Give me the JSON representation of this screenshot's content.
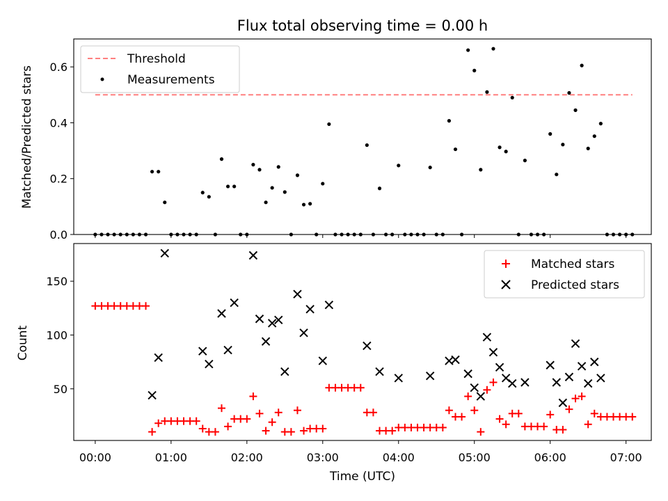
{
  "chart_data": [
    {
      "type": "scatter",
      "title": "Flux total observing time = 0.00 h",
      "xlabel": "",
      "ylabel": "Matched/Predicted stars",
      "xlim": [
        "23:43",
        "07:20"
      ],
      "ylim": [
        0,
        0.7
      ],
      "yticks": [
        "0.0",
        "0.2",
        "0.4",
        "0.6"
      ],
      "legend": "top-left",
      "series": [
        {
          "name": "Threshold",
          "kind": "dashed-line",
          "color": "#ff7f7f",
          "points": [
            [
              "00:00",
              0.5
            ],
            [
              "07:05",
              0.5
            ]
          ]
        },
        {
          "name": "Measurements",
          "kind": "dots",
          "color": "#000000",
          "points": [
            [
              "00:00",
              0
            ],
            [
              "00:05",
              0
            ],
            [
              "00:10",
              0
            ],
            [
              "00:15",
              0
            ],
            [
              "00:20",
              0
            ],
            [
              "00:25",
              0
            ],
            [
              "00:30",
              0
            ],
            [
              "00:35",
              0
            ],
            [
              "00:40",
              0
            ],
            [
              "00:45",
              0.225
            ],
            [
              "00:50",
              0.225
            ],
            [
              "00:55",
              0.115
            ],
            [
              "01:00",
              0
            ],
            [
              "01:05",
              0
            ],
            [
              "01:10",
              0
            ],
            [
              "01:15",
              0
            ],
            [
              "01:20",
              0
            ],
            [
              "01:25",
              0.15
            ],
            [
              "01:30",
              0.135
            ],
            [
              "01:35",
              0
            ],
            [
              "01:40",
              0.27
            ],
            [
              "01:45",
              0.172
            ],
            [
              "01:50",
              0.172
            ],
            [
              "01:55",
              0
            ],
            [
              "02:00",
              0
            ],
            [
              "02:05",
              0.25
            ],
            [
              "02:10",
              0.232
            ],
            [
              "02:15",
              0.115
            ],
            [
              "02:20",
              0.167
            ],
            [
              "02:25",
              0.242
            ],
            [
              "02:30",
              0.152
            ],
            [
              "02:35",
              0
            ],
            [
              "02:40",
              0.212
            ],
            [
              "02:45",
              0.107
            ],
            [
              "02:50",
              0.11
            ],
            [
              "02:55",
              0
            ],
            [
              "03:00",
              0.182
            ],
            [
              "03:05",
              0.395
            ],
            [
              "03:10",
              0
            ],
            [
              "03:15",
              0
            ],
            [
              "03:20",
              0
            ],
            [
              "03:25",
              0
            ],
            [
              "03:30",
              0
            ],
            [
              "03:35",
              0.32
            ],
            [
              "03:40",
              0
            ],
            [
              "03:45",
              0.165
            ],
            [
              "03:50",
              0
            ],
            [
              "03:55",
              0
            ],
            [
              "04:00",
              0.247
            ],
            [
              "04:05",
              0
            ],
            [
              "04:10",
              0
            ],
            [
              "04:15",
              0
            ],
            [
              "04:20",
              0
            ],
            [
              "04:25",
              0.24
            ],
            [
              "04:30",
              0
            ],
            [
              "04:35",
              0
            ],
            [
              "04:40",
              0.407
            ],
            [
              "04:45",
              0.305
            ],
            [
              "04:50",
              0
            ],
            [
              "04:55",
              0.66
            ],
            [
              "05:00",
              0.587
            ],
            [
              "05:05",
              0.232
            ],
            [
              "05:10",
              0.51
            ],
            [
              "05:15",
              0.665
            ],
            [
              "05:20",
              0.312
            ],
            [
              "05:25",
              0.297
            ],
            [
              "05:30",
              0.49
            ],
            [
              "05:35",
              0
            ],
            [
              "05:40",
              0.265
            ],
            [
              "05:45",
              0
            ],
            [
              "05:50",
              0
            ],
            [
              "05:55",
              0
            ],
            [
              "06:00",
              0.36
            ],
            [
              "06:05",
              0.215
            ],
            [
              "06:10",
              0.322
            ],
            [
              "06:15",
              0.507
            ],
            [
              "06:20",
              0.445
            ],
            [
              "06:25",
              0.605
            ],
            [
              "06:30",
              0.308
            ],
            [
              "06:35",
              0.352
            ],
            [
              "06:40",
              0.397
            ],
            [
              "06:45",
              0
            ],
            [
              "06:50",
              0
            ],
            [
              "06:55",
              0
            ],
            [
              "07:00",
              0
            ],
            [
              "07:05",
              0
            ]
          ]
        }
      ]
    },
    {
      "type": "scatter",
      "title": "",
      "xlabel": "Time (UTC)",
      "ylabel": "Count",
      "xlim": [
        "23:43",
        "07:20"
      ],
      "ylim": [
        2,
        185
      ],
      "xticks": [
        "00:00",
        "01:00",
        "02:00",
        "03:00",
        "04:00",
        "05:00",
        "06:00",
        "07:00"
      ],
      "yticks": [
        "50",
        "100",
        "150"
      ],
      "legend": "top-right",
      "series": [
        {
          "name": "Matched stars",
          "kind": "plus",
          "color": "#ff0000",
          "points": [
            [
              "00:00",
              127
            ],
            [
              "00:05",
              127
            ],
            [
              "00:10",
              127
            ],
            [
              "00:15",
              127
            ],
            [
              "00:20",
              127
            ],
            [
              "00:25",
              127
            ],
            [
              "00:30",
              127
            ],
            [
              "00:35",
              127
            ],
            [
              "00:40",
              127
            ],
            [
              "00:45",
              10
            ],
            [
              "00:50",
              18
            ],
            [
              "00:55",
              20
            ],
            [
              "01:00",
              20
            ],
            [
              "01:05",
              20
            ],
            [
              "01:10",
              20
            ],
            [
              "01:15",
              20
            ],
            [
              "01:20",
              20
            ],
            [
              "01:25",
              13
            ],
            [
              "01:30",
              10
            ],
            [
              "01:35",
              10
            ],
            [
              "01:40",
              32
            ],
            [
              "01:45",
              15
            ],
            [
              "01:50",
              22
            ],
            [
              "01:55",
              22
            ],
            [
              "02:00",
              22
            ],
            [
              "02:05",
              43
            ],
            [
              "02:10",
              27
            ],
            [
              "02:15",
              11
            ],
            [
              "02:20",
              19
            ],
            [
              "02:25",
              28
            ],
            [
              "02:30",
              10
            ],
            [
              "02:35",
              10
            ],
            [
              "02:40",
              30
            ],
            [
              "02:45",
              11
            ],
            [
              "02:50",
              13
            ],
            [
              "02:55",
              13
            ],
            [
              "03:00",
              13
            ],
            [
              "03:05",
              51
            ],
            [
              "03:10",
              51
            ],
            [
              "03:15",
              51
            ],
            [
              "03:20",
              51
            ],
            [
              "03:25",
              51
            ],
            [
              "03:30",
              51
            ],
            [
              "03:35",
              28
            ],
            [
              "03:40",
              28
            ],
            [
              "03:45",
              11
            ],
            [
              "03:50",
              11
            ],
            [
              "03:55",
              11
            ],
            [
              "04:00",
              14
            ],
            [
              "04:05",
              14
            ],
            [
              "04:10",
              14
            ],
            [
              "04:15",
              14
            ],
            [
              "04:20",
              14
            ],
            [
              "04:25",
              14
            ],
            [
              "04:30",
              14
            ],
            [
              "04:35",
              14
            ],
            [
              "04:40",
              30
            ],
            [
              "04:45",
              24
            ],
            [
              "04:50",
              24
            ],
            [
              "04:55",
              43
            ],
            [
              "05:00",
              30
            ],
            [
              "05:05",
              10
            ],
            [
              "05:10",
              49
            ],
            [
              "05:15",
              56
            ],
            [
              "05:20",
              22
            ],
            [
              "05:25",
              17
            ],
            [
              "05:30",
              27
            ],
            [
              "05:35",
              27
            ],
            [
              "05:40",
              15
            ],
            [
              "05:45",
              15
            ],
            [
              "05:50",
              15
            ],
            [
              "05:55",
              15
            ],
            [
              "06:00",
              26
            ],
            [
              "06:05",
              12
            ],
            [
              "06:10",
              12
            ],
            [
              "06:15",
              31
            ],
            [
              "06:20",
              41
            ],
            [
              "06:25",
              43
            ],
            [
              "06:30",
              17
            ],
            [
              "06:35",
              27
            ],
            [
              "06:40",
              24
            ],
            [
              "06:45",
              24
            ],
            [
              "06:50",
              24
            ],
            [
              "06:55",
              24
            ],
            [
              "07:00",
              24
            ],
            [
              "07:05",
              24
            ]
          ]
        },
        {
          "name": "Predicted stars",
          "kind": "x",
          "color": "#000000",
          "points": [
            [
              "00:45",
              44
            ],
            [
              "00:50",
              79
            ],
            [
              "00:55",
              176
            ],
            [
              "01:25",
              85
            ],
            [
              "01:30",
              73
            ],
            [
              "01:40",
              120
            ],
            [
              "01:45",
              86
            ],
            [
              "01:50",
              130
            ],
            [
              "02:05",
              174
            ],
            [
              "02:10",
              115
            ],
            [
              "02:15",
              94
            ],
            [
              "02:20",
              111
            ],
            [
              "02:25",
              114
            ],
            [
              "02:30",
              66
            ],
            [
              "02:40",
              138
            ],
            [
              "02:45",
              102
            ],
            [
              "02:50",
              124
            ],
            [
              "03:00",
              76
            ],
            [
              "03:05",
              128
            ],
            [
              "03:35",
              90
            ],
            [
              "03:45",
              66
            ],
            [
              "04:00",
              60
            ],
            [
              "04:25",
              62
            ],
            [
              "04:40",
              76
            ],
            [
              "04:45",
              77
            ],
            [
              "04:55",
              64
            ],
            [
              "05:00",
              51
            ],
            [
              "05:05",
              43
            ],
            [
              "05:10",
              98
            ],
            [
              "05:15",
              84
            ],
            [
              "05:20",
              70
            ],
            [
              "05:25",
              60
            ],
            [
              "05:30",
              55
            ],
            [
              "05:40",
              56
            ],
            [
              "06:00",
              72
            ],
            [
              "06:05",
              56
            ],
            [
              "06:10",
              37
            ],
            [
              "06:15",
              61
            ],
            [
              "06:20",
              92
            ],
            [
              "06:25",
              71
            ],
            [
              "06:30",
              55
            ],
            [
              "06:35",
              75
            ],
            [
              "06:40",
              60
            ]
          ]
        }
      ]
    }
  ]
}
